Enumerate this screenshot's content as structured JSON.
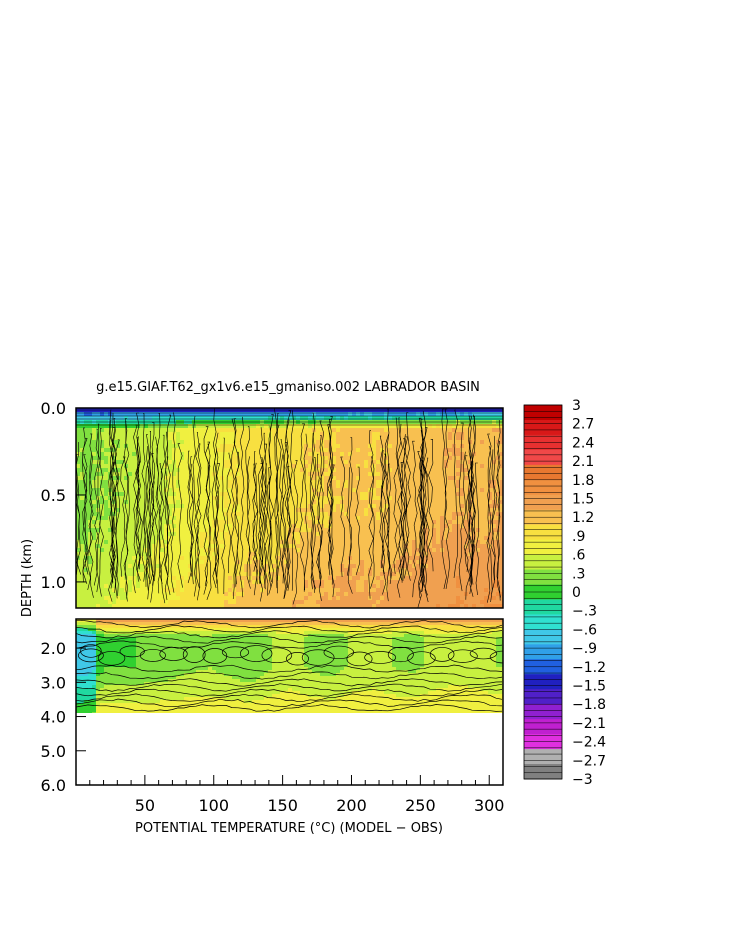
{
  "chart_data": {
    "type": "heatmap",
    "title": "g.e15.GIAF.T62_gx1v6.e15_gmaniso.002 LABRADOR BASIN",
    "xlabel": "POTENTIAL TEMPERATURE (°C) (MODEL − OBS)",
    "ylabel": "DEPTH (km)",
    "xlim": [
      0,
      310
    ],
    "x_ticks": [
      50,
      100,
      150,
      200,
      250,
      300
    ],
    "x_tick_labels": [
      "50",
      "100",
      "150",
      "200",
      "250",
      "300"
    ],
    "upper_panel": {
      "ylim": [
        0.0,
        1.15
      ],
      "y_ticks": [
        0.0,
        0.5,
        1.0
      ],
      "y_tick_labels": [
        "0.0",
        "0.5",
        "1.0"
      ]
    },
    "lower_panel": {
      "ylim": [
        1.15,
        6.0
      ],
      "y_ticks": [
        2.0,
        3.0,
        4.0,
        5.0,
        6.0
      ],
      "y_tick_labels": [
        "2.0",
        "3.0",
        "4.0",
        "5.0",
        "6.0"
      ],
      "data_max_depth": 4.0
    },
    "colorbar": {
      "min": -3,
      "max": 3,
      "labels": [
        "3",
        "2.7",
        "2.4",
        "2.1",
        "1.8",
        "1.5",
        "1.2",
        ".9",
        ".6",
        ".3",
        "0",
        "−.3",
        "−.6",
        "−.9",
        "−1.2",
        "−1.5",
        "−1.8",
        "−2.1",
        "−2.4",
        "−2.7",
        "−3"
      ],
      "colors": [
        "#c00000",
        "#d81818",
        "#e83030",
        "#f04848",
        "#e87830",
        "#f09040",
        "#f0a050",
        "#f8c050",
        "#f8e040",
        "#f0f040",
        "#c8f040",
        "#80e040",
        "#30d030",
        "#20d8a0",
        "#30e0d0",
        "#40c8e8",
        "#30a0e8",
        "#2060e0",
        "#2020c0",
        "#5020c8",
        "#9020d0",
        "#c020d0",
        "#e030e0",
        "#b0b0b0",
        "#808080"
      ]
    },
    "column_profiles": {
      "x": [
        5,
        20,
        35,
        50,
        65,
        80,
        95,
        110,
        125,
        140,
        155,
        170,
        185,
        200,
        215,
        230,
        245,
        260,
        275,
        290,
        305
      ],
      "upper_mid_value": [
        0.3,
        0.35,
        0.4,
        0.45,
        0.55,
        0.7,
        0.75,
        0.85,
        0.95,
        0.9,
        1.0,
        1.05,
        1.1,
        1.15,
        1.1,
        1.15,
        1.2,
        1.25,
        1.3,
        1.25,
        1.3
      ],
      "upper_deep_value": [
        0.5,
        0.6,
        0.65,
        0.75,
        0.85,
        0.95,
        1.0,
        1.1,
        1.2,
        1.2,
        1.3,
        1.35,
        1.4,
        1.45,
        1.4,
        1.45,
        1.5,
        1.55,
        1.6,
        1.55,
        1.6
      ],
      "deep_value_2km": [
        -0.2,
        0.1,
        0.1,
        0.15,
        0.2,
        0.3,
        0.35,
        0.25,
        0.15,
        0.35,
        0.45,
        0.3,
        0.25,
        0.4,
        0.45,
        0.35,
        0.3,
        0.45,
        0.5,
        0.45,
        0.35
      ]
    }
  }
}
